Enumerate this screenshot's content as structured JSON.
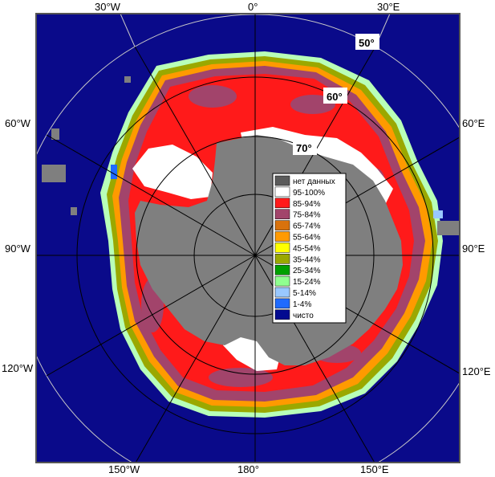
{
  "map": {
    "longitude_labels": {
      "top": [
        "30°W",
        "0°",
        "30°E"
      ],
      "bottom": [
        "150°W",
        "180°",
        "150°E"
      ],
      "left": [
        "60°W",
        "90°W",
        "120°W"
      ],
      "right": [
        "60°E",
        "90°E",
        "120°E"
      ]
    },
    "latitude_labels": [
      "50°",
      "60°",
      "70°"
    ]
  },
  "legend": {
    "items": [
      {
        "label": "нет данных",
        "color": "#5a5a5a"
      },
      {
        "label": "95-100%",
        "color": "#ffffff"
      },
      {
        "label": "85-94%",
        "color": "#ff1a1a"
      },
      {
        "label": "75-84%",
        "color": "#a2446b"
      },
      {
        "label": "65-74%",
        "color": "#d8720d"
      },
      {
        "label": "55-64%",
        "color": "#ff9a00"
      },
      {
        "label": "45-54%",
        "color": "#ffff00"
      },
      {
        "label": "35-44%",
        "color": "#9aa800"
      },
      {
        "label": "25-34%",
        "color": "#00a000"
      },
      {
        "label": "15-24%",
        "color": "#90ff90"
      },
      {
        "label": "5-14%",
        "color": "#99c8ff"
      },
      {
        "label": "1-4%",
        "color": "#1f6bff"
      },
      {
        "label": "чисто",
        "color": "#030a90"
      }
    ]
  },
  "colors": {
    "ocean": "#0a0a8a",
    "land_gray": "#7f7f7f",
    "frame": "#555555"
  }
}
